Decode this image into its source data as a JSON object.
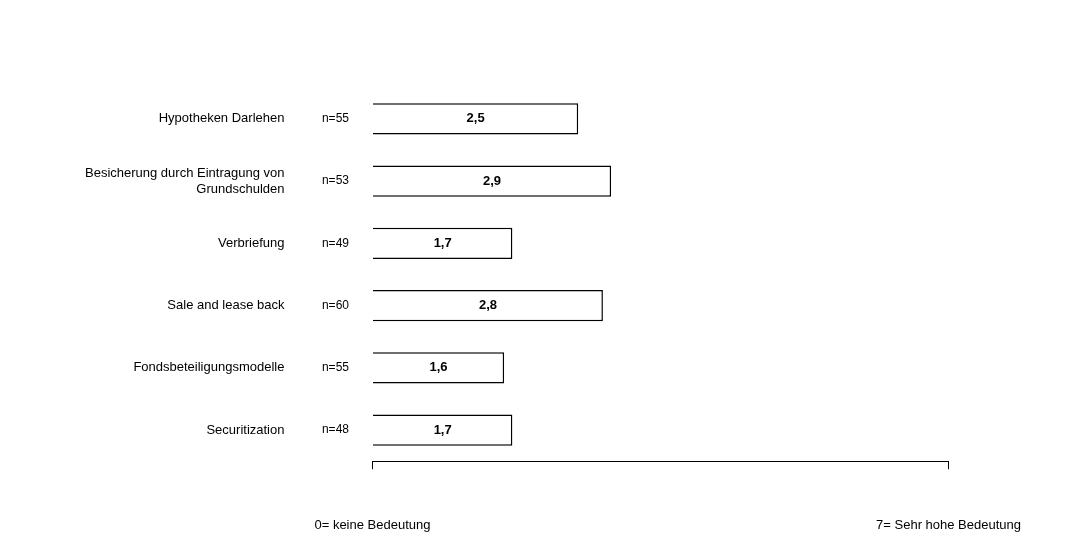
{
  "chart_data": {
    "type": "bar",
    "orientation": "horizontal",
    "categories": [
      "Hypotheken Darlehen",
      "Besicherung durch Eintragung von Grundschulden",
      "Verbriefung",
      "Sale and lease back",
      "Fondsbeteiligungsmodelle",
      "Securitization"
    ],
    "values": [
      2.5,
      2.9,
      1.7,
      2.8,
      1.6,
      1.7
    ],
    "value_labels": [
      "2,5",
      "2,9",
      "1,7",
      "2,8",
      "1,6",
      "1,7"
    ],
    "color": "#ffffff",
    "xlim": [
      0,
      7
    ],
    "xticks": [
      {
        "value": 0,
        "label": "0= keine Bedeutung"
      },
      {
        "value": 7,
        "label": "7= Sehr hohe Bedeutung"
      }
    ],
    "annotations": [
      "n=55",
      "n=53",
      "n=49",
      "n=60",
      "n=55",
      "n=48"
    ],
    "grid": false,
    "legend": false
  }
}
